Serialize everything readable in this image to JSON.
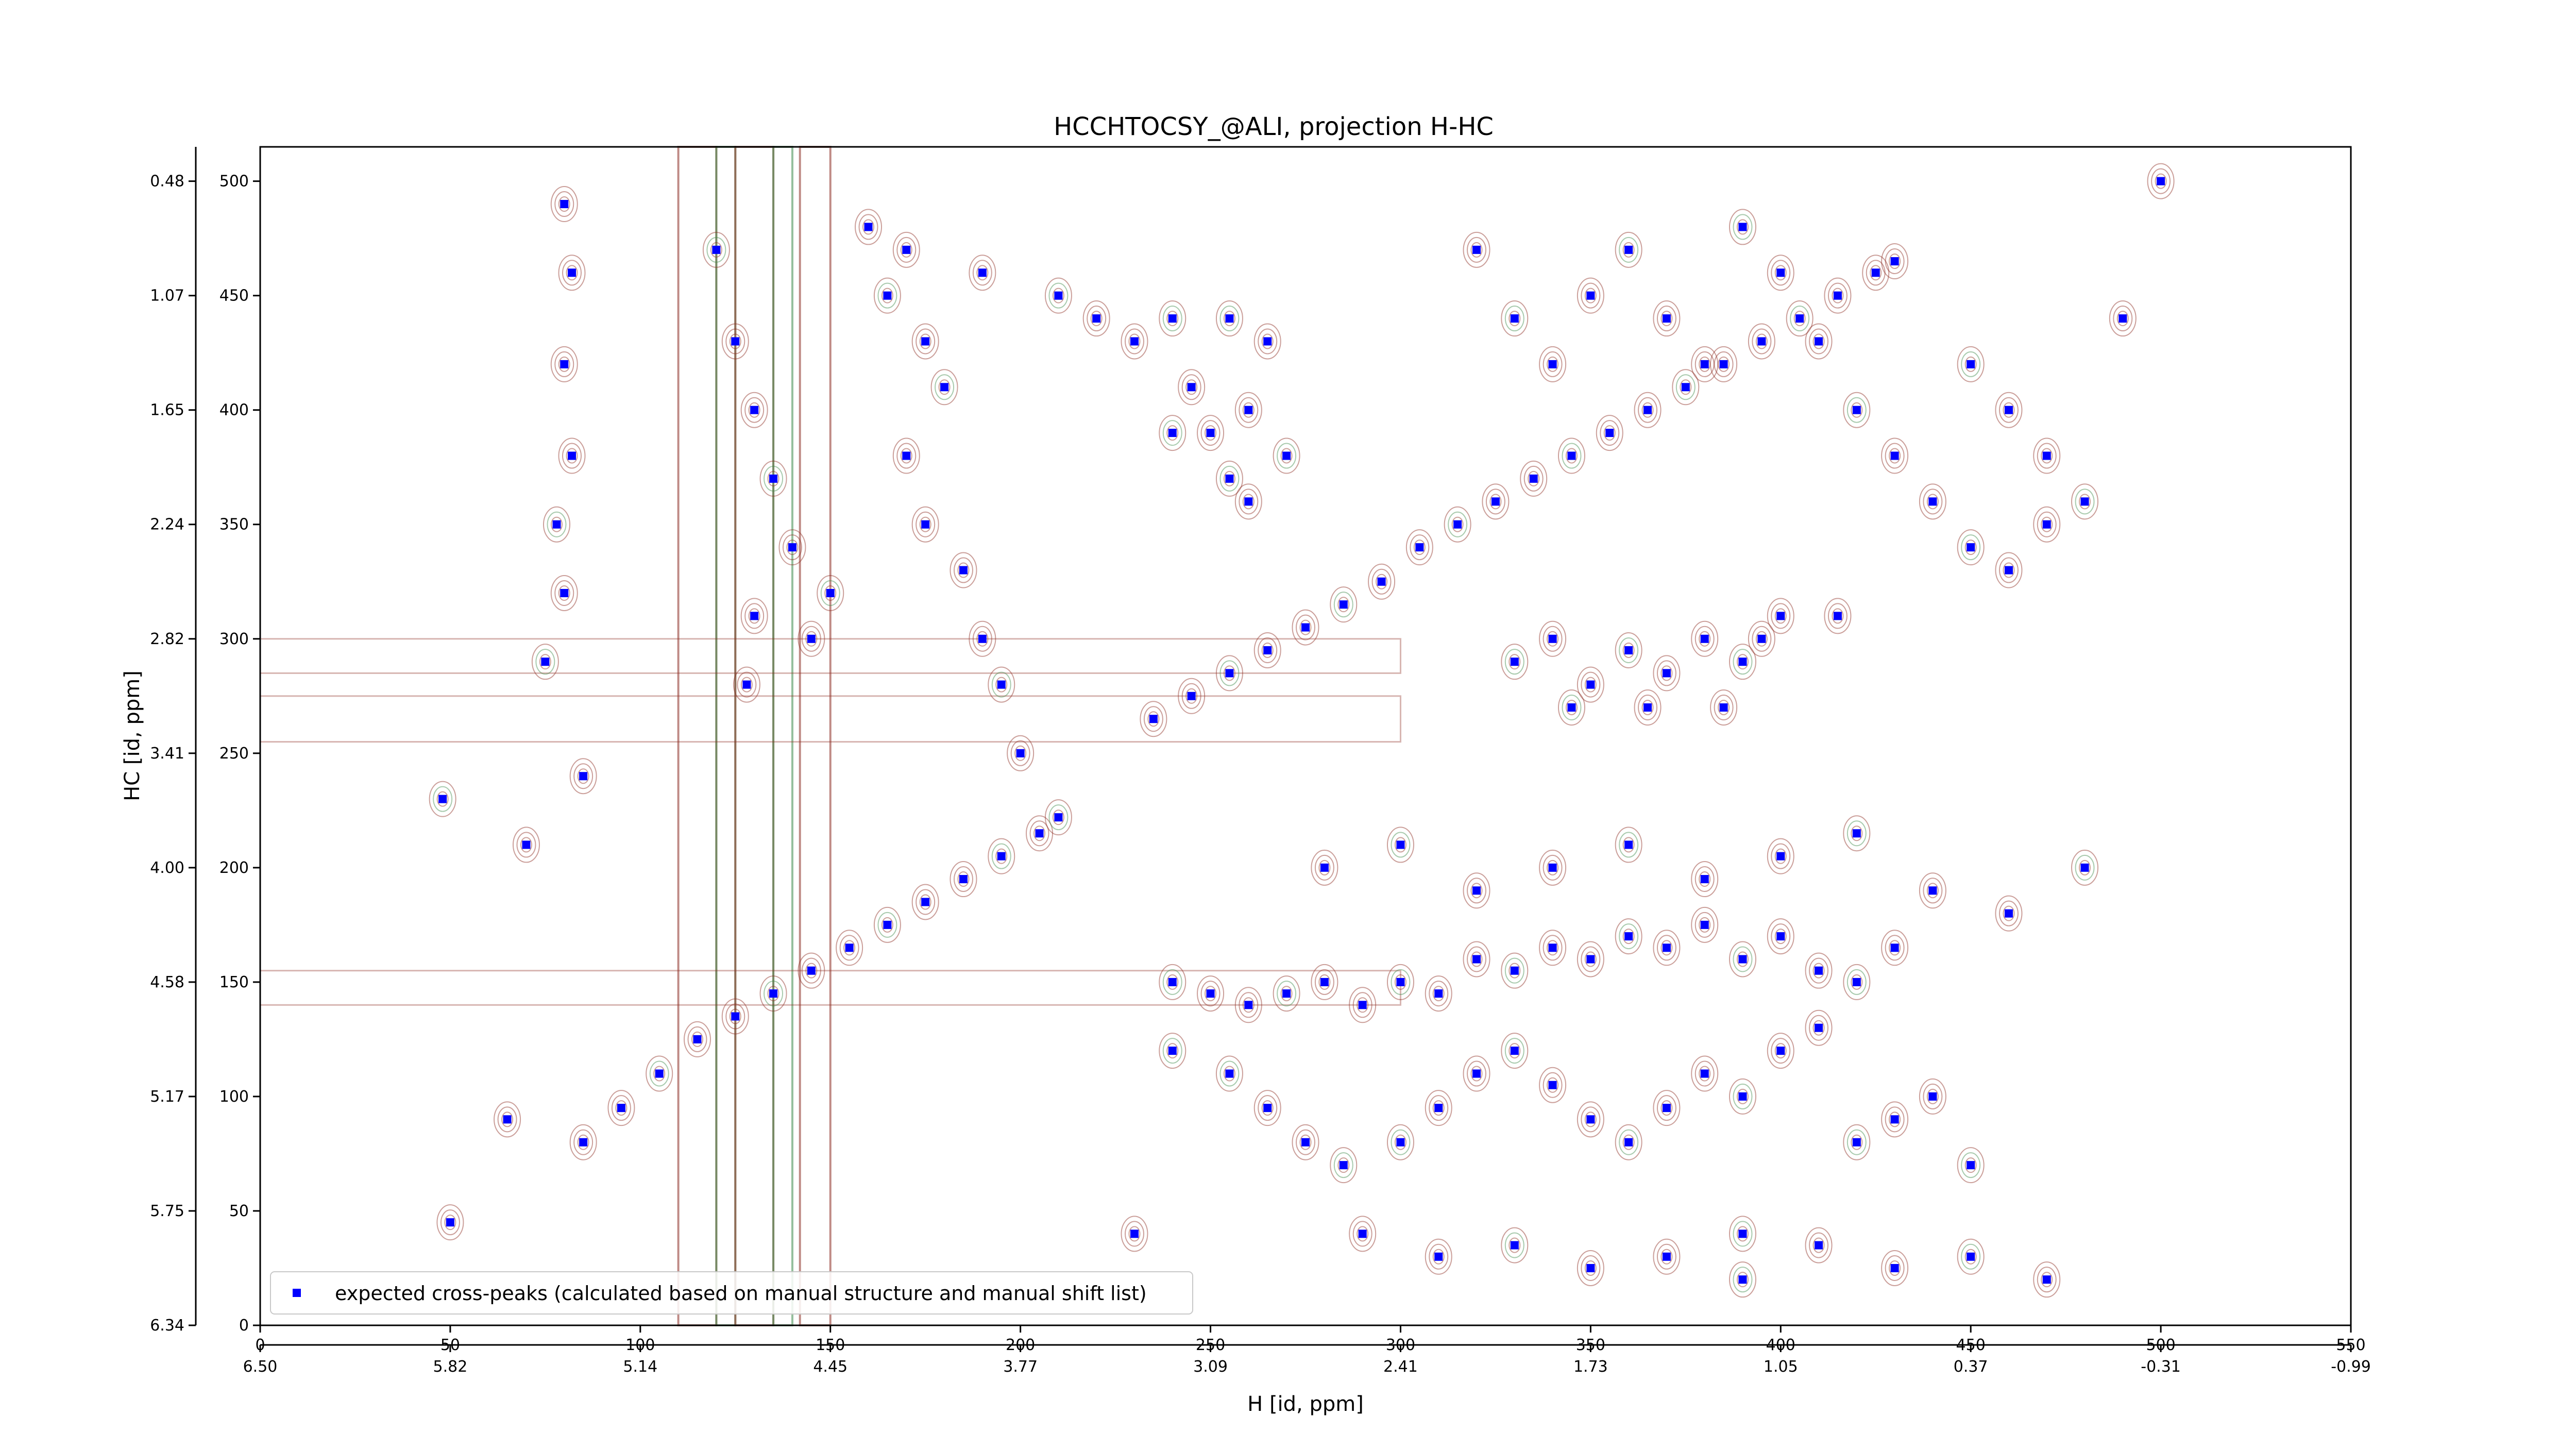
{
  "chart_data": {
    "type": "scatter",
    "title": "HCCHTOCSY_@ALI, projection H-HC",
    "xlabel": "H [id, ppm]",
    "ylabel": "HC [id, ppm]",
    "x_index_range": [
      0,
      550
    ],
    "y_index_range": [
      0,
      515
    ],
    "x_index_ticks": [
      0,
      50,
      100,
      150,
      200,
      250,
      300,
      350,
      400,
      450,
      500,
      550
    ],
    "x_ppm_ticks": [
      "6.50",
      "5.82",
      "5.14",
      "4.45",
      "3.77",
      "3.09",
      "2.41",
      "1.73",
      "1.05",
      "0.37",
      "-0.31",
      "-0.99"
    ],
    "y_index_ticks": [
      0,
      50,
      100,
      150,
      200,
      250,
      300,
      350,
      400,
      450,
      500
    ],
    "y_ppm_ticks": [
      "6.34",
      "5.75",
      "5.17",
      "4.58",
      "4.00",
      "3.41",
      "2.82",
      "2.24",
      "1.65",
      "1.07",
      "0.48"
    ],
    "legend": {
      "position": "lower-left",
      "entries": [
        "expected cross-peaks (calculated based on manual structure and manual shift list)"
      ]
    },
    "colors": {
      "marker": "#0000ff",
      "contour_positive": "#8b2a20",
      "contour_negative": "#3d8a4a"
    },
    "series": [
      {
        "name": "expected cross-peaks (calculated based on manual structure and manual shift list)",
        "points": [
          [
            85,
            80
          ],
          [
            95,
            95
          ],
          [
            105,
            110
          ],
          [
            115,
            125
          ],
          [
            125,
            135
          ],
          [
            135,
            145
          ],
          [
            145,
            155
          ],
          [
            155,
            165
          ],
          [
            165,
            175
          ],
          [
            175,
            185
          ],
          [
            185,
            195
          ],
          [
            195,
            205
          ],
          [
            205,
            215
          ],
          [
            210,
            222
          ],
          [
            235,
            265
          ],
          [
            245,
            275
          ],
          [
            255,
            285
          ],
          [
            265,
            295
          ],
          [
            275,
            305
          ],
          [
            285,
            315
          ],
          [
            295,
            325
          ],
          [
            305,
            340
          ],
          [
            315,
            350
          ],
          [
            325,
            360
          ],
          [
            335,
            370
          ],
          [
            345,
            380
          ],
          [
            355,
            390
          ],
          [
            365,
            400
          ],
          [
            375,
            410
          ],
          [
            385,
            420
          ],
          [
            395,
            430
          ],
          [
            405,
            440
          ],
          [
            415,
            450
          ],
          [
            425,
            460
          ],
          [
            430,
            465
          ],
          [
            80,
            490
          ],
          [
            82,
            460
          ],
          [
            80,
            420
          ],
          [
            82,
            380
          ],
          [
            78,
            350
          ],
          [
            80,
            320
          ],
          [
            75,
            290
          ],
          [
            85,
            240
          ],
          [
            70,
            210
          ],
          [
            65,
            90
          ],
          [
            50,
            45
          ],
          [
            48,
            230
          ],
          [
            120,
            470
          ],
          [
            125,
            430
          ],
          [
            130,
            400
          ],
          [
            135,
            370
          ],
          [
            140,
            340
          ],
          [
            130,
            310
          ],
          [
            128,
            280
          ],
          [
            145,
            300
          ],
          [
            150,
            320
          ],
          [
            160,
            480
          ],
          [
            165,
            450
          ],
          [
            175,
            430
          ],
          [
            180,
            410
          ],
          [
            170,
            380
          ],
          [
            175,
            350
          ],
          [
            185,
            330
          ],
          [
            190,
            300
          ],
          [
            195,
            280
          ],
          [
            200,
            250
          ],
          [
            240,
            440
          ],
          [
            245,
            410
          ],
          [
            250,
            390
          ],
          [
            255,
            370
          ],
          [
            260,
            400
          ],
          [
            265,
            430
          ],
          [
            270,
            380
          ],
          [
            240,
            390
          ],
          [
            255,
            440
          ],
          [
            260,
            360
          ],
          [
            330,
            290
          ],
          [
            340,
            300
          ],
          [
            350,
            280
          ],
          [
            360,
            295
          ],
          [
            370,
            285
          ],
          [
            380,
            300
          ],
          [
            390,
            290
          ],
          [
            345,
            270
          ],
          [
            365,
            270
          ],
          [
            385,
            270
          ],
          [
            395,
            300
          ],
          [
            400,
            310
          ],
          [
            415,
            310
          ],
          [
            320,
            470
          ],
          [
            330,
            440
          ],
          [
            340,
            420
          ],
          [
            350,
            450
          ],
          [
            360,
            470
          ],
          [
            370,
            440
          ],
          [
            380,
            420
          ],
          [
            390,
            480
          ],
          [
            400,
            460
          ],
          [
            410,
            430
          ],
          [
            420,
            400
          ],
          [
            430,
            380
          ],
          [
            440,
            360
          ],
          [
            450,
            340
          ],
          [
            460,
            330
          ],
          [
            470,
            350
          ],
          [
            240,
            150
          ],
          [
            250,
            145
          ],
          [
            260,
            140
          ],
          [
            270,
            145
          ],
          [
            280,
            150
          ],
          [
            290,
            140
          ],
          [
            300,
            150
          ],
          [
            310,
            145
          ],
          [
            320,
            160
          ],
          [
            330,
            155
          ],
          [
            340,
            165
          ],
          [
            350,
            160
          ],
          [
            360,
            170
          ],
          [
            370,
            165
          ],
          [
            380,
            175
          ],
          [
            390,
            160
          ],
          [
            400,
            170
          ],
          [
            410,
            155
          ],
          [
            420,
            150
          ],
          [
            430,
            165
          ],
          [
            240,
            120
          ],
          [
            255,
            110
          ],
          [
            265,
            95
          ],
          [
            275,
            80
          ],
          [
            285,
            70
          ],
          [
            300,
            80
          ],
          [
            310,
            95
          ],
          [
            320,
            110
          ],
          [
            330,
            120
          ],
          [
            340,
            105
          ],
          [
            350,
            90
          ],
          [
            360,
            80
          ],
          [
            370,
            95
          ],
          [
            380,
            110
          ],
          [
            390,
            100
          ],
          [
            400,
            120
          ],
          [
            410,
            130
          ],
          [
            420,
            80
          ],
          [
            430,
            90
          ],
          [
            440,
            100
          ],
          [
            450,
            70
          ],
          [
            280,
            200
          ],
          [
            300,
            210
          ],
          [
            320,
            190
          ],
          [
            340,
            200
          ],
          [
            360,
            210
          ],
          [
            380,
            195
          ],
          [
            400,
            205
          ],
          [
            420,
            215
          ],
          [
            440,
            190
          ],
          [
            460,
            180
          ],
          [
            480,
            200
          ],
          [
            170,
            470
          ],
          [
            190,
            460
          ],
          [
            210,
            450
          ],
          [
            220,
            440
          ],
          [
            230,
            430
          ],
          [
            450,
            420
          ],
          [
            460,
            400
          ],
          [
            470,
            380
          ],
          [
            480,
            360
          ],
          [
            490,
            440
          ],
          [
            500,
            500
          ],
          [
            290,
            40
          ],
          [
            310,
            30
          ],
          [
            330,
            35
          ],
          [
            350,
            25
          ],
          [
            370,
            30
          ],
          [
            390,
            20
          ],
          [
            410,
            35
          ],
          [
            430,
            25
          ],
          [
            450,
            30
          ],
          [
            470,
            20
          ],
          [
            390,
            40
          ],
          [
            230,
            40
          ]
        ]
      }
    ]
  }
}
